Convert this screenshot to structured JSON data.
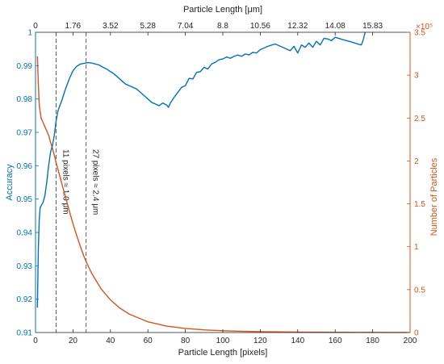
{
  "chart_data": {
    "type": "line",
    "colors": {
      "accuracy": "#0072BD",
      "particles": "#D95319",
      "axes": "#262626",
      "vline": "#595959"
    },
    "x_axis_bottom": {
      "label": "Particle Length [pixels]",
      "ticks": [
        "0",
        "20",
        "40",
        "60",
        "80",
        "100",
        "120",
        "140",
        "160",
        "180",
        "200"
      ],
      "range": [
        0,
        200
      ]
    },
    "x_axis_top": {
      "label": "Particle Length [μm]",
      "ticks": [
        {
          "px": 0,
          "label": "0"
        },
        {
          "px": 20,
          "label": "1.76"
        },
        {
          "px": 40,
          "label": "3.52"
        },
        {
          "px": 60,
          "label": "5.28"
        },
        {
          "px": 80,
          "label": "7.04"
        },
        {
          "px": 100,
          "label": "8.8"
        },
        {
          "px": 120,
          "label": "10.56"
        },
        {
          "px": 140,
          "label": "12.32"
        },
        {
          "px": 160,
          "label": "14.08"
        },
        {
          "px": 180,
          "label": "15.83"
        }
      ]
    },
    "y_axis_left": {
      "label": "Accuracy",
      "range": [
        0.91,
        1.0
      ],
      "ticks": [
        "0.91",
        "0.92",
        "0.93",
        "0.94",
        "0.95",
        "0.96",
        "0.97",
        "0.98",
        "0.99",
        "1"
      ]
    },
    "y_axis_right": {
      "label": "Number of Particles",
      "range": [
        0,
        350000
      ],
      "exponent": "×10⁵",
      "ticks": [
        "0",
        "0.5",
        "1",
        "1.5",
        "2",
        "2.5",
        "3",
        "3.5"
      ]
    },
    "vertical_lines": [
      {
        "x": 11,
        "label": "11 pixels ≈ 1.0 μm"
      },
      {
        "x": 27,
        "label": "27 pixels ≈ 2.4 μm"
      }
    ],
    "series": [
      {
        "axis": "left",
        "x": [
          1,
          1.5,
          2,
          2.5,
          3,
          4,
          5,
          6,
          7,
          8,
          9,
          10,
          11,
          12,
          13,
          14,
          16,
          18,
          20,
          22,
          24,
          26,
          28,
          30,
          32,
          34,
          36,
          38,
          40,
          42,
          44,
          46,
          48,
          50,
          52,
          54,
          56,
          58,
          60,
          62,
          64,
          66,
          68,
          70,
          71,
          72,
          74,
          76,
          78,
          80,
          82,
          84,
          86,
          88,
          90,
          92,
          94,
          96,
          98,
          100,
          102,
          104,
          106,
          108,
          110,
          112,
          114,
          116,
          118,
          120,
          124,
          128,
          132,
          136,
          138,
          140,
          142,
          144,
          146,
          148,
          150,
          152,
          154,
          156,
          158,
          160,
          164,
          168,
          172,
          174,
          175,
          176
        ],
        "values": [
          0.9175,
          0.935,
          0.944,
          0.9475,
          0.948,
          0.949,
          0.951,
          0.955,
          0.96,
          0.964,
          0.966,
          0.969,
          0.9735,
          0.9765,
          0.978,
          0.9795,
          0.983,
          0.986,
          0.9885,
          0.9898,
          0.9905,
          0.9907,
          0.9909,
          0.9908,
          0.9905,
          0.9902,
          0.9895,
          0.989,
          0.9882,
          0.9875,
          0.9865,
          0.9855,
          0.9845,
          0.984,
          0.9835,
          0.983,
          0.982,
          0.981,
          0.98,
          0.979,
          0.9785,
          0.978,
          0.9788,
          0.9782,
          0.9775,
          0.9788,
          0.9805,
          0.982,
          0.9835,
          0.984,
          0.9862,
          0.986,
          0.988,
          0.9882,
          0.9895,
          0.989,
          0.9905,
          0.991,
          0.9918,
          0.992,
          0.9926,
          0.9922,
          0.9928,
          0.9932,
          0.9928,
          0.9935,
          0.9932,
          0.994,
          0.9938,
          0.9948,
          0.9958,
          0.9965,
          0.9955,
          0.9945,
          0.9958,
          0.9938,
          0.9962,
          0.9955,
          0.9968,
          0.9955,
          0.9973,
          0.9962,
          0.9982,
          0.998,
          0.9975,
          0.9985,
          0.9978,
          0.9972,
          0.9965,
          0.9962,
          0.9978,
          1.0005
        ]
      },
      {
        "axis": "right",
        "x": [
          1,
          1.5,
          2,
          3,
          4,
          5,
          6,
          7,
          8,
          9,
          10,
          11,
          12,
          14,
          16,
          18,
          20,
          22,
          24,
          26,
          28,
          30,
          35,
          40,
          45,
          50,
          60,
          70,
          80,
          90,
          100,
          110,
          120,
          130,
          140,
          150,
          160,
          170,
          180,
          190,
          200
        ],
        "values": [
          322000,
          290000,
          265000,
          250000,
          245000,
          240000,
          235000,
          230000,
          222000,
          215000,
          207000,
          198000,
          190000,
          174000,
          158000,
          142000,
          127000,
          113000,
          100000,
          88000,
          78000,
          69000,
          51000,
          38000,
          28500,
          21500,
          12500,
          7500,
          4800,
          3100,
          2100,
          1500,
          1000,
          700,
          500,
          350,
          250,
          180,
          130,
          100,
          80
        ]
      }
    ]
  }
}
